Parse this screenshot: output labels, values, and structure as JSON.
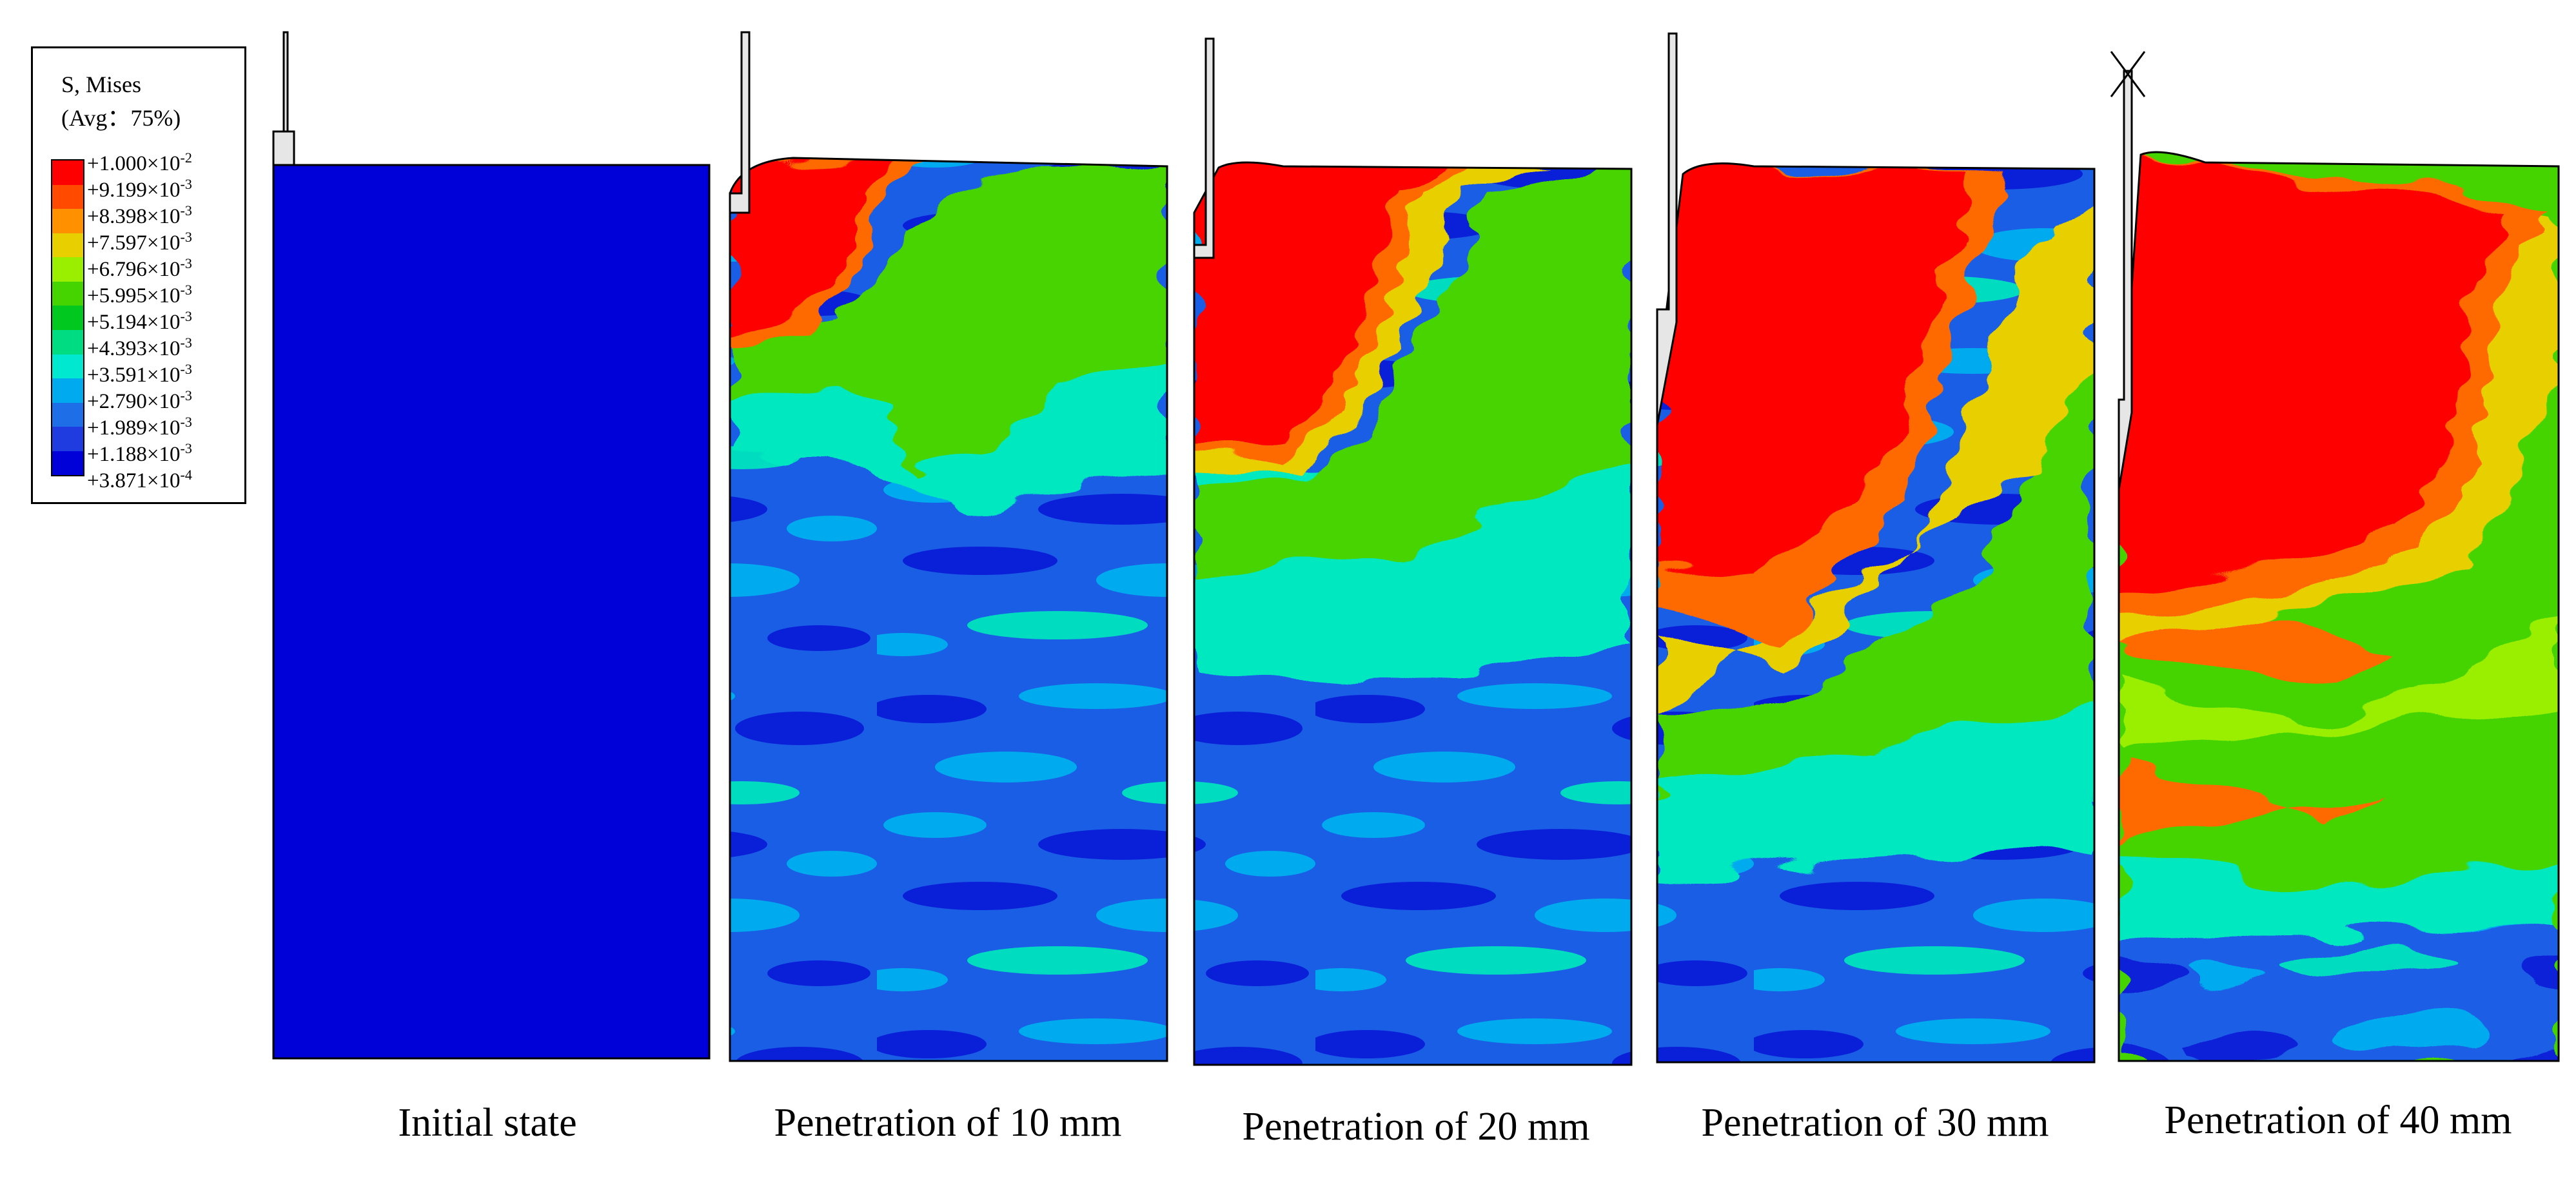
{
  "legend": {
    "title": "S, Mises",
    "subtitle": "(Avg：75%)",
    "colors": [
      "#ff0000",
      "#ff4a00",
      "#ff9000",
      "#e8d000",
      "#9aef00",
      "#46d400",
      "#00c81e",
      "#00dc82",
      "#00e8d0",
      "#00aaee",
      "#1e6ee8",
      "#1e3ce0",
      "#0000d8"
    ],
    "ticks": [
      {
        "mantissa": "+1.000",
        "sep": "×10",
        "exp": "-2"
      },
      {
        "mantissa": "+9.199",
        "sep": "×10",
        "exp": "-3"
      },
      {
        "mantissa": "+8.398",
        "sep": "×10",
        "exp": "-3"
      },
      {
        "mantissa": "+7.597",
        "sep": "×10",
        "exp": "-3"
      },
      {
        "mantissa": "+6.796",
        "sep": "×10",
        "exp": "-3"
      },
      {
        "mantissa": "+5.995",
        "sep": "×10",
        "exp": "-3"
      },
      {
        "mantissa": "+5.194",
        "sep": "×10",
        "exp": "-3"
      },
      {
        "mantissa": "+4.393",
        "sep": "×10",
        "exp": "-3"
      },
      {
        "mantissa": "+3.591",
        "sep": "×10",
        "exp": "-3"
      },
      {
        "mantissa": "+2.790",
        "sep": "×10",
        "exp": "-3"
      },
      {
        "mantissa": "+1.989",
        "sep": "×10",
        "exp": "-3"
      },
      {
        "mantissa": "+1.188",
        "sep": "×10",
        "exp": "-3"
      },
      {
        "mantissa": "+3.871",
        "sep": "×10",
        "exp": "-4"
      }
    ]
  },
  "panels": [
    {
      "caption": "Initial state"
    },
    {
      "caption": "Penetration of 10 mm"
    },
    {
      "caption": "Penetration of 20 mm"
    },
    {
      "caption": "Penetration of 30 mm"
    },
    {
      "caption": "Penetration of 40 mm"
    }
  ]
}
